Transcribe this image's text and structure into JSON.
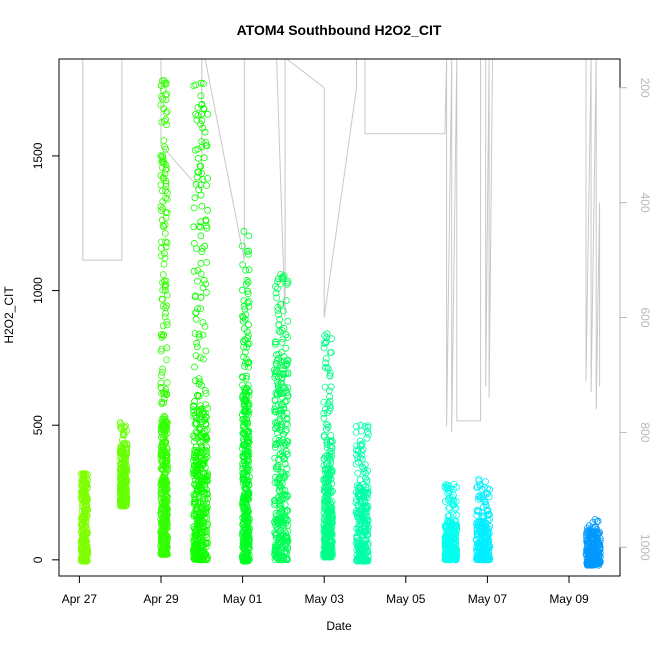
{
  "chart_data": {
    "type": "scatter",
    "title": "ATOM4 Southbound H2O2_CIT",
    "xlabel": "Date",
    "ylabel": "H2O2_CIT",
    "xlim": [
      "2018-04-26T12:00",
      "2018-05-10T06:00"
    ],
    "ylim": [
      -60,
      1860
    ],
    "yticks": [
      0,
      500,
      1000,
      1500
    ],
    "xticks": [
      {
        "date": "2018-04-27",
        "label": "Apr 27"
      },
      {
        "date": "2018-04-29",
        "label": "Apr 29"
      },
      {
        "date": "2018-05-01",
        "label": "May 01"
      },
      {
        "date": "2018-05-03",
        "label": "May 03"
      },
      {
        "date": "2018-05-05",
        "label": "May 05"
      },
      {
        "date": "2018-05-07",
        "label": "May 07"
      },
      {
        "date": "2018-05-09",
        "label": "May 09"
      }
    ],
    "right_axis": {
      "ticks": [
        200,
        400,
        600,
        800,
        1000
      ],
      "range": [
        1050,
        150
      ],
      "reversed": true,
      "color": "#b8b8b8"
    },
    "grid": false,
    "marker": "open-circle",
    "flights": [
      {
        "start": "2018-04-27T01:00",
        "end": "2018-04-27T05:00",
        "ymin": -5,
        "ymax": 320,
        "median": 180,
        "color": "#7fff00"
      },
      {
        "start": "2018-04-28T00:00",
        "end": "2018-04-28T04:00",
        "ymin": 200,
        "ymax": 510,
        "median": 330,
        "color": "#66ff00"
      },
      {
        "start": "2018-04-28T23:50",
        "end": "2018-04-29T03:50",
        "ymin": 20,
        "ymax": 1780,
        "median": 300,
        "color": "#33ff00"
      },
      {
        "start": "2018-04-29T19:00",
        "end": "2018-04-30T03:30",
        "ymin": 0,
        "ymax": 1770,
        "median": 320,
        "color": "#11ff00"
      },
      {
        "start": "2018-04-30T23:50",
        "end": "2018-05-01T04:00",
        "ymin": -5,
        "ymax": 1220,
        "median": 360,
        "color": "#00ff22"
      },
      {
        "start": "2018-05-01T18:40",
        "end": "2018-05-02T02:50",
        "ymin": 0,
        "ymax": 1060,
        "median": 430,
        "color": "#00ff55"
      },
      {
        "start": "2018-05-02T23:40",
        "end": "2018-05-03T05:00",
        "ymin": 10,
        "ymax": 840,
        "median": 260,
        "color": "#00ff88"
      },
      {
        "start": "2018-05-03T18:40",
        "end": "2018-05-04T02:00",
        "ymin": -5,
        "ymax": 500,
        "median": 150,
        "color": "#00ffaa"
      },
      {
        "start": "2018-05-05T23:00",
        "end": "2018-05-06T06:00",
        "ymin": 0,
        "ymax": 280,
        "median": 80,
        "color": "#00ffee"
      },
      {
        "start": "2018-05-06T17:30",
        "end": "2018-05-07T01:30",
        "ymin": 0,
        "ymax": 300,
        "median": 80,
        "color": "#00eeff"
      },
      {
        "start": "2018-05-09T10:00",
        "end": "2018-05-09T18:30",
        "ymin": -20,
        "ymax": 150,
        "median": 50,
        "color": "#0099ff"
      }
    ],
    "altitude_trace": {
      "color": "#c8c8c8",
      "units": "right_axis",
      "points": [
        [
          "2018-04-27T02:00",
          150
        ],
        [
          "2018-04-27T02:00",
          500
        ],
        [
          "2018-04-28T01:00",
          500
        ],
        [
          "2018-04-28T01:00",
          150
        ],
        [
          "2018-04-29T00:00",
          150
        ],
        [
          "2018-04-29T00:00",
          300
        ],
        [
          "2018-04-30T00:00",
          380
        ],
        [
          "2018-04-30T00:00",
          150
        ],
        [
          "2018-04-30T02:00",
          150
        ],
        [
          "2018-05-01T01:00",
          500
        ],
        [
          "2018-05-01T01:00",
          150
        ],
        [
          "2018-05-01T20:00",
          150
        ],
        [
          "2018-05-02T01:00",
          600
        ],
        [
          "2018-05-02T01:00",
          150
        ],
        [
          "2018-05-02T02:00",
          150
        ],
        [
          "2018-05-03T00:00",
          200
        ],
        [
          "2018-05-03T00:00",
          600
        ],
        [
          "2018-05-03T19:00",
          200
        ],
        [
          "2018-05-03T19:00",
          150
        ],
        [
          "2018-05-04T00:00",
          150
        ],
        [
          "2018-05-04T00:00",
          280
        ],
        [
          "2018-05-05T23:00",
          280
        ],
        [
          "2018-05-06T00:00",
          150
        ],
        [
          "2018-05-06T00:00",
          790
        ],
        [
          "2018-05-06T03:00",
          150
        ],
        [
          "2018-05-06T03:00",
          800
        ],
        [
          "2018-05-06T06:00",
          150
        ],
        [
          "2018-05-06T06:00",
          780
        ],
        [
          "2018-05-06T20:00",
          780
        ],
        [
          "2018-05-06T20:00",
          150
        ],
        [
          "2018-05-06T23:00",
          150
        ],
        [
          "2018-05-06T23:00",
          720
        ],
        [
          "2018-05-07T01:00",
          150
        ],
        [
          "2018-05-07T01:00",
          740
        ],
        [
          "2018-05-07T03:00",
          150
        ],
        [
          "2018-05-09T10:00",
          150
        ],
        [
          "2018-05-09T10:00",
          710
        ],
        [
          "2018-05-09T13:00",
          150
        ],
        [
          "2018-05-09T13:00",
          730
        ],
        [
          "2018-05-09T16:00",
          150
        ],
        [
          "2018-05-09T16:00",
          760
        ],
        [
          "2018-05-09T18:00",
          400
        ],
        [
          "2018-05-09T18:00",
          720
        ]
      ]
    }
  }
}
